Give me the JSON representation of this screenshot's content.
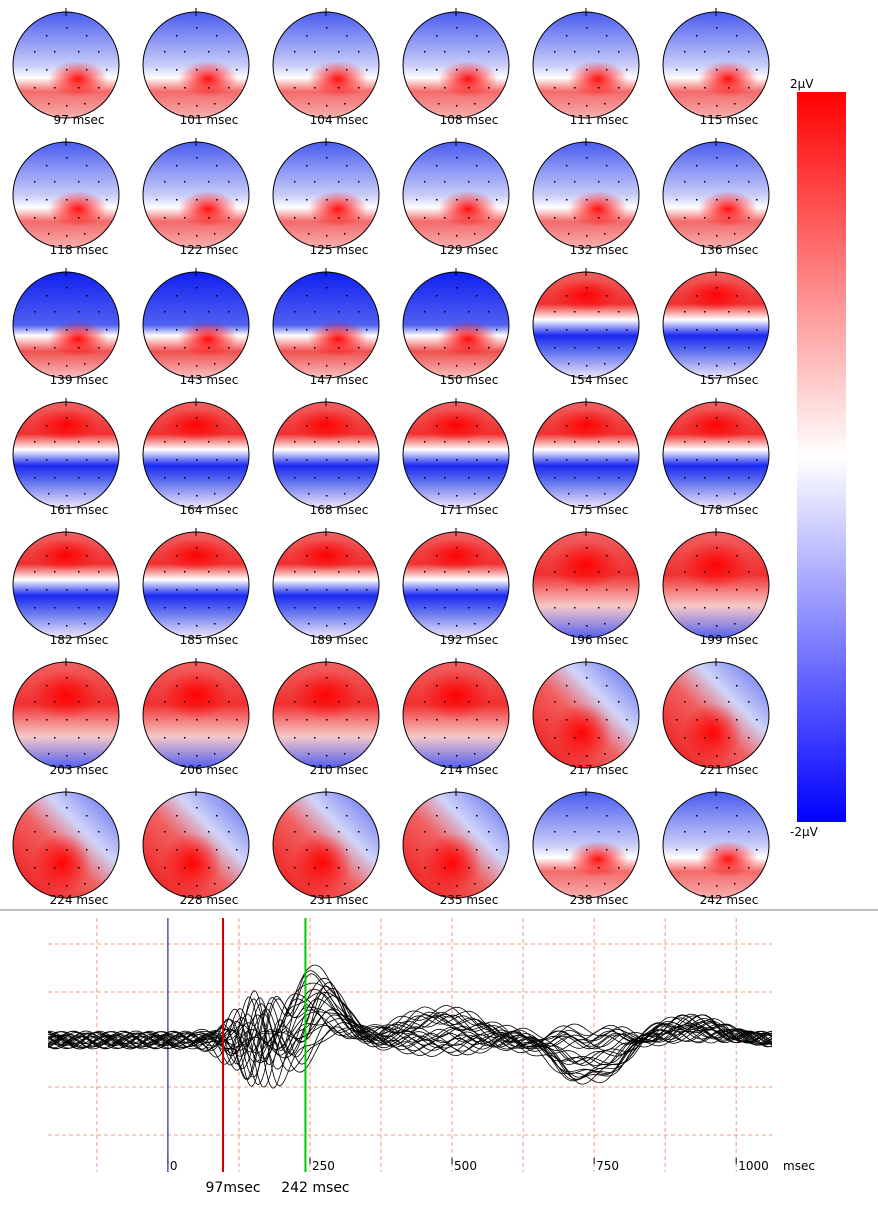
{
  "maps": {
    "labels": [
      "97 msec",
      "101 msec",
      "104 msec",
      "108 msec",
      "111 msec",
      "115 msec",
      "118 msec",
      "122 msec",
      "125 msec",
      "129 msec",
      "132 msec",
      "136 msec",
      "139 msec",
      "143 msec",
      "147 msec",
      "150 msec",
      "154 msec",
      "157 msec",
      "161 msec",
      "164 msec",
      "168 msec",
      "171 msec",
      "175 msec",
      "178 msec",
      "182 msec",
      "185 msec",
      "189 msec",
      "192 msec",
      "196 msec",
      "199 msec",
      "203 msec",
      "206 msec",
      "210 msec",
      "214 msec",
      "217 msec",
      "221 msec",
      "224 msec",
      "228 msec",
      "231 msec",
      "235 msec",
      "238 msec",
      "242 msec"
    ]
  },
  "color_scale": {
    "max_label": "2µV",
    "min_label": "-2µV"
  },
  "chart_data": {
    "type": "line",
    "xlim": [
      -211,
      1063
    ],
    "xticks": [
      0,
      250,
      500,
      750,
      1000
    ],
    "x_unit": "msec",
    "cursors": [
      {
        "value": 97,
        "label": "97msec",
        "color": "#cc0000"
      },
      {
        "value": 242,
        "label": "242 msec",
        "color": "#00cc00"
      }
    ]
  }
}
